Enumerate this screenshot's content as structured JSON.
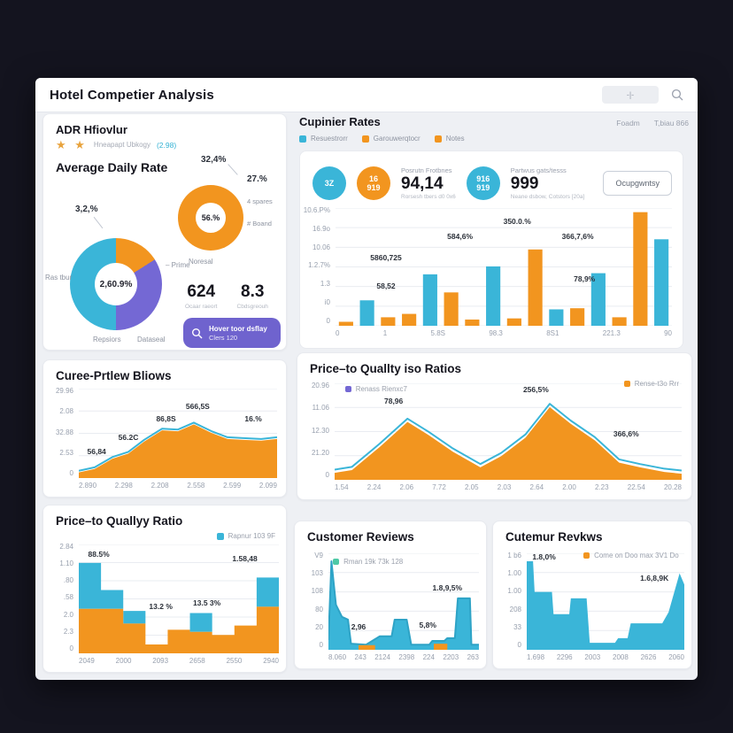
{
  "window": {
    "title": "Hotel Competier Analysis"
  },
  "header": {
    "filter_glyph": "-|-"
  },
  "adr": {
    "title": "ADR Hfiovlur",
    "stars": "★ ★",
    "subtitle": "Hneapapt Ubkogy",
    "rating": "(2.98)",
    "heading": "Average Daily Rate",
    "donut_small": {
      "center": "56.%",
      "label_line": "32,4%",
      "label_right": "27.%",
      "legend": [
        "4 spares",
        "# Boand"
      ],
      "caption": "Noresal"
    },
    "donut_large": {
      "center": "2,60.9%",
      "top": "3,2,%",
      "left": "Ras tbur",
      "bottom_left": "Repsiors",
      "bottom_right": "Dataseal",
      "right": "– Prime"
    },
    "stat1": {
      "value": "624",
      "caption": "Ocaar raeort"
    },
    "stat2": {
      "value": "8.3",
      "caption": "Cbdsgreouh"
    },
    "button": {
      "line1": "Hover toor dsflay",
      "line2": "Clers 120"
    }
  },
  "rates": {
    "title": "Cupinier Rates",
    "meta1": "Foadm",
    "meta2": "T,biau 866",
    "legend": [
      {
        "label": "Resuestrorr"
      },
      {
        "label": "Garouwerqtocr"
      },
      {
        "label": "Notes"
      }
    ],
    "circle1": "3Z",
    "circle2_l1": "16",
    "circle2_l2": "919",
    "circle3_l1": "916",
    "circle3_l2": "919",
    "stat1": {
      "label": "Posrutn Frotbnes",
      "value": "94,14",
      "caption": "Rorsesh tbers d0 0x6"
    },
    "stat2": {
      "label": "Partwus gats/tesss",
      "value": "999",
      "caption": "Neane dsbow, Cotstors [20a]"
    },
    "button": "Ocupgwntsy"
  },
  "curve": {
    "title": "Curee-Prtlew Bliows"
  },
  "ratios": {
    "title": "Price–to Quallty iso Ratios",
    "legend_purple": "Renass Rienxc7",
    "legend_orange": "Rense-t3o Rrr"
  },
  "pq": {
    "title": "Price–to Quallyy Ratio",
    "legend": "Rapnur 103 9F"
  },
  "reviews": {
    "title": "Customer Reviews",
    "legend": "Rman 19k 73k 128"
  },
  "revkws": {
    "title": "Cutemur Revkws",
    "legend": "Come on Doo max 3V1 Do"
  },
  "colors": {
    "cyan": "#3ab5d8",
    "cyan_dark": "#2ea3c6",
    "orange": "#f2951f",
    "purple": "#7468d4"
  },
  "chart_data": {
    "rates": {
      "type": "bar",
      "title": "Cupinier Rates",
      "y_ticks": [
        "10.6.P%",
        "16.9o",
        "10.06",
        "1.2.7%",
        "1.3",
        "i0",
        "0"
      ],
      "x_ticks": [
        "0",
        "1",
        "5.8S",
        "98.3",
        "8S1",
        "221.3",
        "90"
      ],
      "bars": [
        {
          "v": 0.03,
          "c": "orange"
        },
        {
          "v": 0.22,
          "c": "cyan"
        },
        {
          "v": 0.07,
          "c": "orange"
        },
        {
          "v": 0.1,
          "c": "orange"
        },
        {
          "v": 0.45,
          "c": "cyan"
        },
        {
          "v": 0.29,
          "c": "orange"
        },
        {
          "v": 0.05,
          "c": "orange"
        },
        {
          "v": 0.52,
          "c": "cyan"
        },
        {
          "v": 0.06,
          "c": "orange"
        },
        {
          "v": 0.67,
          "c": "orange"
        },
        {
          "v": 0.14,
          "c": "cyan"
        },
        {
          "v": 0.15,
          "c": "orange"
        },
        {
          "v": 0.46,
          "c": "cyan"
        },
        {
          "v": 0.07,
          "c": "orange"
        },
        {
          "v": 1.0,
          "c": "orange"
        },
        {
          "v": 0.76,
          "c": "cyan"
        }
      ],
      "annotations": [
        {
          "text": "5860,725",
          "x": 15,
          "y": 42
        },
        {
          "text": "58,52",
          "x": 15,
          "y": 66
        },
        {
          "text": "584,6%",
          "x": 37,
          "y": 24
        },
        {
          "text": "350.0.%",
          "x": 54,
          "y": 11
        },
        {
          "text": "366,7,6%",
          "x": 72,
          "y": 24
        },
        {
          "text": "78,9%",
          "x": 74,
          "y": 60
        }
      ]
    },
    "curve": {
      "type": "area",
      "title": "Curee-Prtlew Bliows",
      "fill": "orange",
      "stroke": "cyan",
      "line_offset": 0.02,
      "y_ticks": [
        "29.96",
        "2.08",
        "32.88",
        "2.53",
        "0"
      ],
      "x_ticks": [
        "2.890",
        "2.298",
        "2.208",
        "2.558",
        "2.599",
        "2.099"
      ],
      "points": [
        [
          0,
          0.06
        ],
        [
          0.08,
          0.1
        ],
        [
          0.17,
          0.22
        ],
        [
          0.25,
          0.28
        ],
        [
          0.33,
          0.42
        ],
        [
          0.42,
          0.55
        ],
        [
          0.5,
          0.54
        ],
        [
          0.58,
          0.62
        ],
        [
          0.67,
          0.52
        ],
        [
          0.75,
          0.45
        ],
        [
          0.83,
          0.44
        ],
        [
          0.92,
          0.43
        ],
        [
          1,
          0.45
        ]
      ],
      "annotations": [
        {
          "text": "56,84",
          "x": 9,
          "y": 70
        },
        {
          "text": "56.2C",
          "x": 25,
          "y": 54
        },
        {
          "text": "86,8S",
          "x": 44,
          "y": 34
        },
        {
          "text": "566,5S",
          "x": 60,
          "y": 20
        },
        {
          "text": "16.%",
          "x": 88,
          "y": 34
        }
      ]
    },
    "ratios": {
      "type": "area",
      "title": "Price–to Quallty iso Ratios",
      "fill": "orange",
      "stroke": "cyan",
      "line_offset": 0.035,
      "y_ticks": [
        "20.96",
        "11.06",
        "12.30",
        "21.20",
        "0"
      ],
      "x_ticks": [
        "1.54",
        "2.24",
        "2.06",
        "7.72",
        "2.05",
        "2.03",
        "2.64",
        "2.00",
        "2.23",
        "22.54",
        "20.28"
      ],
      "points": [
        [
          0,
          0.07
        ],
        [
          0.05,
          0.1
        ],
        [
          0.13,
          0.35
        ],
        [
          0.21,
          0.62
        ],
        [
          0.27,
          0.48
        ],
        [
          0.34,
          0.3
        ],
        [
          0.42,
          0.13
        ],
        [
          0.48,
          0.25
        ],
        [
          0.55,
          0.45
        ],
        [
          0.62,
          0.78
        ],
        [
          0.68,
          0.6
        ],
        [
          0.75,
          0.42
        ],
        [
          0.82,
          0.18
        ],
        [
          0.88,
          0.13
        ],
        [
          0.95,
          0.08
        ],
        [
          1,
          0.06
        ]
      ],
      "annotations": [
        {
          "text": "78,96",
          "x": 17,
          "y": 18
        },
        {
          "text": "256,5%",
          "x": 58,
          "y": 6
        },
        {
          "text": "366,6%",
          "x": 84,
          "y": 52
        }
      ]
    },
    "pq": {
      "type": "steps",
      "title": "Price–to Quallyy Ratio",
      "y_ticks": [
        "2.84",
        "1.10",
        ".80",
        ".58",
        "2.0",
        "2.3",
        "0"
      ],
      "x_ticks": [
        "2049",
        "2000",
        "2093",
        "2658",
        "2550",
        "2940"
      ],
      "cols": [
        {
          "o": 0.42,
          "t": 0.86
        },
        {
          "o": 0.42,
          "t": 0.6
        },
        {
          "o": 0.28,
          "t": 0.4
        },
        {
          "o": 0.08,
          "t": 0.08
        },
        {
          "o": 0.22,
          "t": 0.22
        },
        {
          "o": 0.2,
          "t": 0.38
        },
        {
          "o": 0.17,
          "t": 0.17
        },
        {
          "o": 0.26,
          "t": 0.26
        },
        {
          "o": 0.44,
          "t": 0.72
        }
      ],
      "annotations": [
        {
          "text": "88.5%",
          "x": 10,
          "y": 9
        },
        {
          "text": "13.2 %",
          "x": 41,
          "y": 57
        },
        {
          "text": "13.5 3%",
          "x": 64,
          "y": 54
        },
        {
          "text": "1.58,48",
          "x": 83,
          "y": 13
        }
      ]
    },
    "reviews": {
      "type": "area",
      "title": "Customer Reviews",
      "fill": "cyan",
      "stroke": "cyan_dark",
      "line_offset": 0,
      "y_ticks": [
        "V9",
        "103",
        "108",
        "80",
        "20",
        "0"
      ],
      "x_ticks": [
        "8.060",
        "243",
        "2124",
        "2398",
        "224",
        "2203",
        "263"
      ],
      "points": [
        [
          0,
          0.1
        ],
        [
          0.02,
          0.95
        ],
        [
          0.05,
          0.48
        ],
        [
          0.09,
          0.35
        ],
        [
          0.13,
          0.32
        ],
        [
          0.15,
          0.06
        ],
        [
          0.25,
          0.05
        ],
        [
          0.34,
          0.14
        ],
        [
          0.42,
          0.14
        ],
        [
          0.44,
          0.32
        ],
        [
          0.52,
          0.32
        ],
        [
          0.55,
          0.05
        ],
        [
          0.67,
          0.05
        ],
        [
          0.69,
          0.09
        ],
        [
          0.77,
          0.09
        ],
        [
          0.79,
          0.12
        ],
        [
          0.84,
          0.12
        ],
        [
          0.86,
          0.55
        ],
        [
          0.94,
          0.55
        ],
        [
          0.95,
          0.05
        ],
        [
          1,
          0.05
        ]
      ],
      "base_bars": [
        {
          "x0": 0.2,
          "x1": 0.31,
          "v": 0.045,
          "c": "orange"
        },
        {
          "x0": 0.7,
          "x1": 0.79,
          "v": 0.06,
          "c": "orange"
        }
      ],
      "annotations": [
        {
          "text": "2,96",
          "x": 20,
          "y": 76
        },
        {
          "text": "5,8%",
          "x": 66,
          "y": 74
        },
        {
          "text": "1.8,9,5%",
          "x": 79,
          "y": 36
        }
      ]
    },
    "revkws": {
      "type": "area",
      "title": "Cutemur Revkws",
      "fill": "cyan",
      "stroke": "none",
      "line_offset": 0,
      "y_ticks": [
        "1 b6",
        "1.00",
        "1.00",
        "208",
        "33",
        "0"
      ],
      "x_ticks": [
        "1.698",
        "2296",
        "2003",
        "2008",
        "2626",
        "2060"
      ],
      "points": [
        [
          0,
          0.95
        ],
        [
          0.04,
          0.95
        ],
        [
          0.05,
          0.62
        ],
        [
          0.16,
          0.62
        ],
        [
          0.17,
          0.38
        ],
        [
          0.27,
          0.38
        ],
        [
          0.28,
          0.55
        ],
        [
          0.38,
          0.55
        ],
        [
          0.4,
          0.07
        ],
        [
          0.56,
          0.07
        ],
        [
          0.58,
          0.12
        ],
        [
          0.64,
          0.12
        ],
        [
          0.66,
          0.28
        ],
        [
          0.86,
          0.28
        ],
        [
          0.9,
          0.4
        ],
        [
          0.97,
          0.82
        ],
        [
          1,
          0.7
        ]
      ],
      "annotations": [
        {
          "text": "1.8,0%",
          "x": 11,
          "y": 4
        },
        {
          "text": "1.6,8,9K",
          "x": 81,
          "y": 26
        }
      ]
    }
  }
}
